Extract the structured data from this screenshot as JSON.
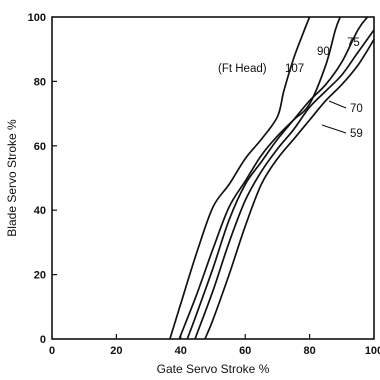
{
  "chart_data": {
    "type": "line",
    "title": "",
    "xlabel": "Gate Servo Stroke %",
    "ylabel": "Blade Servo Stroke %",
    "xlim": [
      0,
      100
    ],
    "ylim": [
      0,
      100
    ],
    "x_ticks": [
      "0",
      "20",
      "40",
      "60",
      "80",
      "100"
    ],
    "y_ticks": [
      "0",
      "20",
      "40",
      "60",
      "80",
      "100"
    ],
    "grid": false,
    "annotation": "(Ft Head)",
    "series": [
      {
        "name": "107",
        "x": [
          36.6,
          40,
          45,
          50,
          55,
          60,
          65,
          70,
          72,
          75,
          78,
          80
        ],
        "y": [
          0,
          11,
          27,
          41,
          48,
          56,
          62,
          69,
          77,
          87,
          95,
          100
        ]
      },
      {
        "name": "90",
        "x": [
          39.5,
          45,
          50,
          55,
          60,
          65,
          70,
          75,
          80,
          85,
          88,
          89.5
        ],
        "y": [
          0,
          14,
          28,
          41,
          49,
          57,
          63,
          68,
          73,
          85,
          96,
          100
        ]
      },
      {
        "name": "75",
        "x": [
          42,
          45,
          50,
          55,
          60,
          65,
          70,
          75,
          80,
          85,
          90,
          95,
          98
        ],
        "y": [
          0,
          8,
          22,
          37,
          48,
          55,
          62,
          68,
          74,
          79,
          86,
          96,
          100
        ]
      },
      {
        "name": "70",
        "x": [
          44.4,
          50,
          55,
          60,
          65,
          70,
          75,
          80,
          85,
          90,
          95,
          100
        ],
        "y": [
          0,
          15,
          30,
          43,
          52,
          59,
          65,
          72,
          77,
          82,
          89,
          96
        ]
      },
      {
        "name": "59",
        "x": [
          47.5,
          50,
          55,
          60,
          65,
          70,
          75,
          80,
          85,
          90,
          95,
          100
        ],
        "y": [
          0,
          6,
          20,
          35,
          48,
          56,
          62,
          68,
          74,
          79,
          85,
          93
        ]
      }
    ]
  }
}
